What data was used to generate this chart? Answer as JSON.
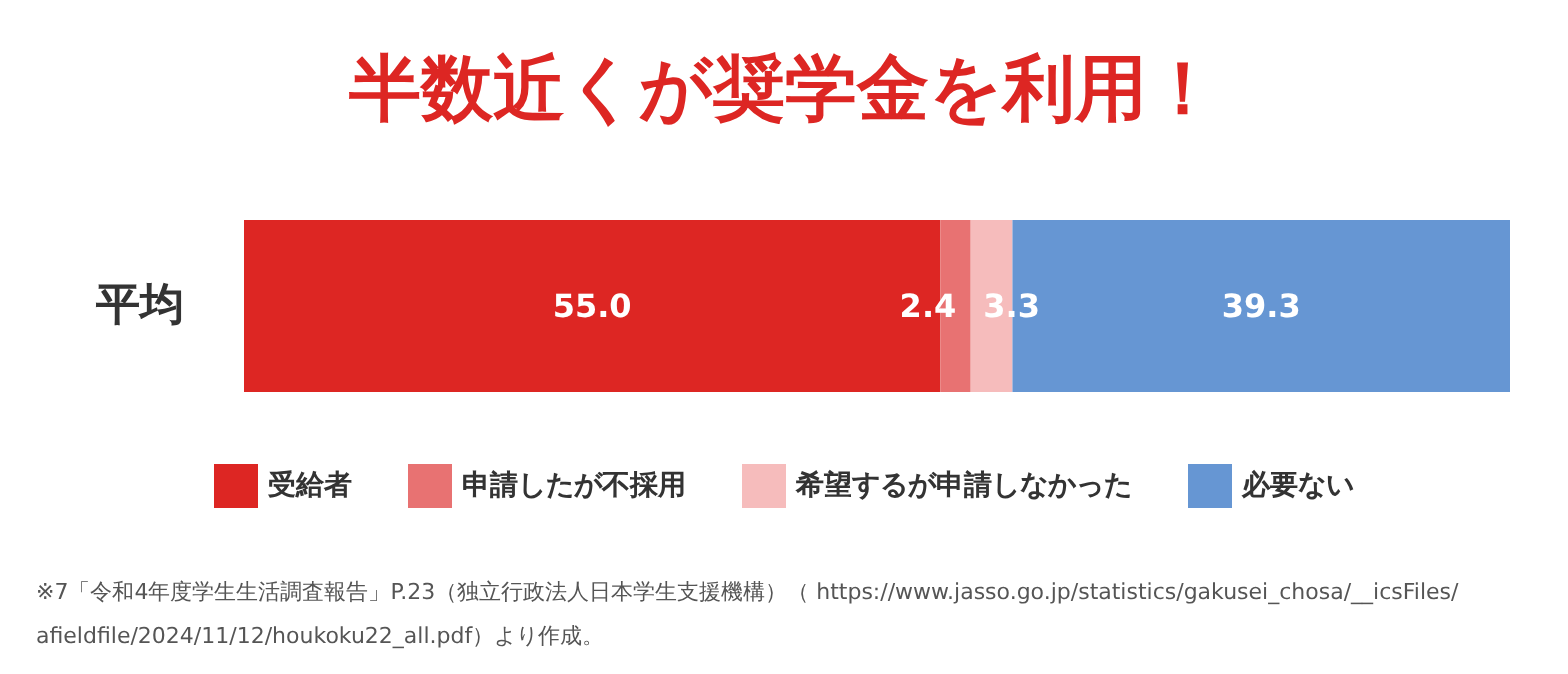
{
  "chart_data": {
    "type": "bar",
    "orientation": "horizontal",
    "stacked": true,
    "title": "半数近くが奨学金を利用！",
    "categories": [
      "平均"
    ],
    "series": [
      {
        "name": "受給者",
        "color": "#dd2623",
        "values": [
          55.0
        ],
        "value_labels": [
          "55.0"
        ]
      },
      {
        "name": "申請したが不採用",
        "color": "#e87272",
        "values": [
          2.4
        ],
        "value_labels": [
          "2.4"
        ]
      },
      {
        "name": "希望するが申請しなかった",
        "color": "#f6bcbc",
        "values": [
          3.3
        ],
        "value_labels": [
          "3.3"
        ]
      },
      {
        "name": "必要ない",
        "color": "#6696d3",
        "values": [
          39.3
        ],
        "value_labels": [
          "39.3"
        ]
      }
    ],
    "legend": "bottom",
    "annotations": [
      "※7「令和4年度学生生活調査報告」P.23（独立行政法人日本学生支援機構）（ https://www.jasso.go.jp/statistics/gakusei_chosa/__icsFiles/afieldfile/2024/11/12/houkoku22_all.pdf）より作成。"
    ]
  }
}
